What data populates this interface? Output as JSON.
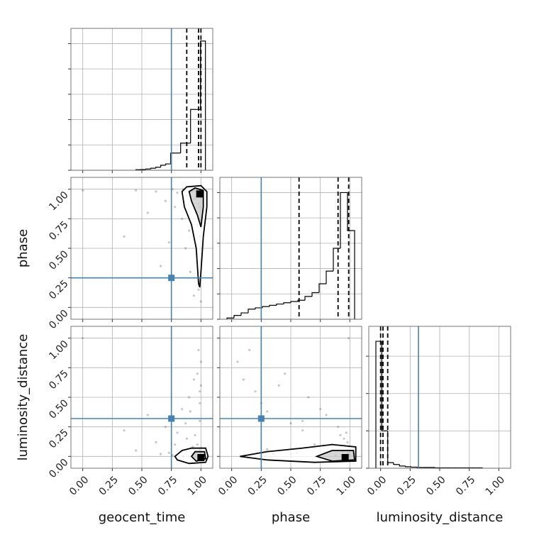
{
  "chart_data": {
    "type": "corner",
    "parameters": [
      "geocent_time",
      "phase",
      "luminosity_distance"
    ],
    "lim": [
      -0.1,
      1.1
    ],
    "ticks": [
      {
        "value": 0,
        "label": "0.00"
      },
      {
        "value": 0.25,
        "label": "0.25"
      },
      {
        "value": 0.5,
        "label": "0.50"
      },
      {
        "value": 0.75,
        "label": "0.75"
      },
      {
        "value": 1,
        "label": "1.00"
      }
    ],
    "grid": true,
    "truths": [
      0.75,
      0.25,
      0.32
    ],
    "truth_color": "#4682b4",
    "samples": [
      [
        0.98,
        0.95,
        1.0,
        0.99,
        0.97,
        0.92,
        0.88,
        0.85,
        0.99,
        1.0,
        0.96,
        0.93,
        0.8,
        0.76,
        0.7,
        0.99,
        0.98,
        1.0,
        0.62,
        0.55,
        0.9,
        0.97,
        0.99,
        0.84,
        0.73,
        1.0,
        0.98,
        0.95,
        0.45,
        0.99,
        0.66,
        0.94,
        1.0,
        0.87,
        0.99,
        0.78,
        0.98,
        0.0,
        0.35,
        0.91
      ],
      [
        0.96,
        0.99,
        0.93,
        0.85,
        0.7,
        0.98,
        0.95,
        1.0,
        0.6,
        0.4,
        0.8,
        0.99,
        0.97,
        1.0,
        0.9,
        0.25,
        0.15,
        0.5,
        0.98,
        0.8,
        0.65,
        0.45,
        0.3,
        0.75,
        0.55,
        0.05,
        0.88,
        0.92,
        0.99,
        0.2,
        0.35,
        0.1,
        0.7,
        0.5,
        0.97,
        0.85,
        0.94,
        0.99,
        0.6,
        0.3
      ],
      [
        0.0,
        0.02,
        0.01,
        0.05,
        0.1,
        0.03,
        0.15,
        0.0,
        0.3,
        0.6,
        0.04,
        0.08,
        0.2,
        0.01,
        0.25,
        0.45,
        0.9,
        0.02,
        0.12,
        0.35,
        0.5,
        0.7,
        0.06,
        0.4,
        0.03,
        0.8,
        0.01,
        0.18,
        0.05,
        0.55,
        0.02,
        0.65,
        0.07,
        0.28,
        0.0,
        0.1,
        0.04,
        1.0,
        0.22,
        0.38
      ]
    ],
    "histograms": [
      {
        "bins": [
          0.45,
          0.492,
          0.534,
          0.576,
          0.618,
          0.66,
          0.702,
          0.744,
          0.786,
          0.828,
          0.87,
          0.912,
          0.954,
          0.996,
          1.038
        ],
        "counts": [
          0.02,
          0.03,
          0.05,
          0.08,
          0.12,
          0.2,
          0.25,
          0.68,
          0.68,
          1.07,
          1.07,
          2.4,
          2.4,
          5.1
        ],
        "ylim": [
          0,
          5.6
        ],
        "yticks": [
          0,
          1,
          2,
          3,
          4,
          5
        ],
        "quantiles": [
          0.88,
          0.98,
          1.0
        ]
      },
      {
        "bins": [
          -0.04,
          0.02,
          0.08,
          0.14,
          0.2,
          0.26,
          0.32,
          0.38,
          0.44,
          0.5,
          0.56,
          0.62,
          0.68,
          0.74,
          0.8,
          0.86,
          0.92,
          0.98,
          1.04
        ],
        "counts": [
          0.05,
          0.15,
          0.25,
          0.4,
          0.45,
          0.5,
          0.55,
          0.6,
          0.65,
          0.7,
          0.75,
          0.9,
          1.05,
          1.4,
          1.9,
          2.8,
          5.0,
          3.5
        ],
        "ylim": [
          0,
          5.6
        ],
        "yticks": [
          0,
          1,
          2,
          3,
          4,
          5
        ],
        "quantiles": [
          0.57,
          0.9,
          0.99
        ]
      },
      {
        "bins": [
          -0.04,
          0.01,
          0.06,
          0.11,
          0.16,
          0.21,
          0.26,
          0.31,
          0.36,
          0.41,
          0.46,
          0.51,
          0.56,
          0.61,
          0.66,
          0.71,
          0.76,
          0.81,
          0.86
        ],
        "counts": [
          3.4,
          1.0,
          0.15,
          0.1,
          0.06,
          0.04,
          0.03,
          0.02,
          0.02,
          0.02,
          0.01,
          0.01,
          0.01,
          0.01,
          0.01,
          0.01,
          0.01,
          0.01
        ],
        "ylim": [
          0,
          3.8
        ],
        "yticks": [
          0,
          1,
          2,
          3
        ],
        "quantiles": [
          0.0,
          0.02,
          0.06
        ]
      }
    ],
    "contours": [
      {
        "levels": [
          [
            [
              0.84,
              0.98
            ],
            [
              0.88,
              1.02
            ],
            [
              1.0,
              1.03
            ],
            [
              1.05,
              0.98
            ],
            [
              1.05,
              0.85
            ],
            [
              1.02,
              0.6
            ],
            [
              1.0,
              0.3
            ],
            [
              0.99,
              0.17
            ],
            [
              0.98,
              0.2
            ],
            [
              0.96,
              0.5
            ],
            [
              0.92,
              0.7
            ],
            [
              0.86,
              0.85
            ]
          ],
          [
            [
              0.9,
              0.98
            ],
            [
              0.95,
              1.01
            ],
            [
              1.02,
              0.99
            ],
            [
              1.02,
              0.85
            ],
            [
              1.0,
              0.68
            ],
            [
              0.97,
              0.78
            ],
            [
              0.92,
              0.9
            ]
          ]
        ],
        "peak": [
          0.99,
          0.96
        ]
      },
      {
        "levels": [
          [
            [
              0.78,
              0.0
            ],
            [
              0.84,
              0.05
            ],
            [
              0.92,
              0.07
            ],
            [
              1.04,
              0.07
            ],
            [
              1.06,
              0.0
            ],
            [
              1.04,
              -0.05
            ],
            [
              0.9,
              -0.06
            ],
            [
              0.8,
              -0.03
            ]
          ],
          [
            [
              0.92,
              0.0
            ],
            [
              0.95,
              0.04
            ],
            [
              1.03,
              0.04
            ],
            [
              1.04,
              -0.02
            ],
            [
              0.96,
              -0.04
            ]
          ]
        ],
        "peak": [
          1.0,
          -0.01
        ]
      },
      {
        "levels": [
          [
            [
              0.07,
              0.0
            ],
            [
              0.3,
              0.04
            ],
            [
              0.6,
              0.07
            ],
            [
              0.85,
              0.1
            ],
            [
              1.05,
              0.08
            ],
            [
              1.05,
              -0.04
            ],
            [
              0.7,
              -0.05
            ],
            [
              0.3,
              -0.03
            ]
          ],
          [
            [
              0.72,
              0.0
            ],
            [
              0.85,
              0.05
            ],
            [
              1.03,
              0.05
            ],
            [
              1.04,
              -0.03
            ],
            [
              0.85,
              -0.04
            ]
          ]
        ],
        "peak": [
          0.96,
          -0.01
        ]
      }
    ]
  }
}
